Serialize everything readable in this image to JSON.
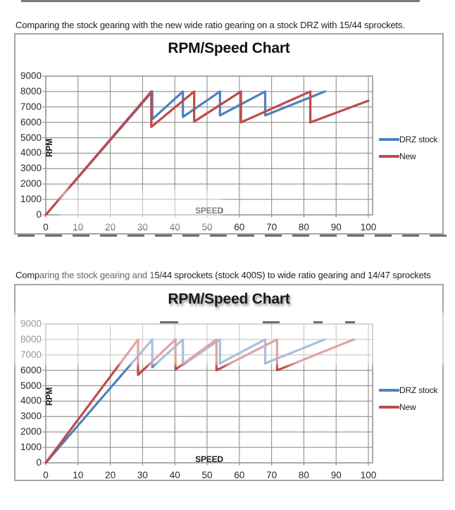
{
  "page": {
    "heading_top": "Comparing the stock gearing with the new wide ratio gearing on a stock DRZ with 15/44 sprockets.",
    "heading_bottom": "Comparing the stock gearing and 15/44 sprockets (stock 400S) to wide ratio gearing and 14/47 sprockets"
  },
  "colors": {
    "series_stock": "#4F81BD",
    "series_new": "#BE4B48",
    "grid": "#8F8F8F",
    "chart_border": "#A6A6A6",
    "tick_text": "#2A2A2A",
    "watermark": "#4A4A4A"
  },
  "chart_data": [
    {
      "type": "line",
      "title": "RPM/Speed Chart",
      "xlabel": "SPEED",
      "ylabel": "RPM",
      "xlim": [
        0,
        101.3
      ],
      "ylim": [
        0,
        9000
      ],
      "xticks": [
        0,
        10,
        20,
        30,
        40,
        50,
        60,
        70,
        80,
        90,
        100
      ],
      "yticks": [
        0,
        1000,
        2000,
        3000,
        4000,
        5000,
        6000,
        7000,
        8000,
        9000
      ],
      "grid": true,
      "legend_position": "right-outside",
      "series": [
        {
          "name": "DRZ stock",
          "color": "#4F81BD",
          "points": [
            [
              0,
              0
            ],
            [
              33,
              8000
            ],
            [
              33,
              6200
            ],
            [
              42.5,
              8000
            ],
            [
              42.5,
              6350
            ],
            [
              54,
              8000
            ],
            [
              54,
              6450
            ],
            [
              68,
              8000
            ],
            [
              68,
              6450
            ],
            [
              86.5,
              8000
            ]
          ]
        },
        {
          "name": "New",
          "color": "#BE4B48",
          "points": [
            [
              0,
              0
            ],
            [
              32.7,
              8000
            ],
            [
              32.7,
              5700
            ],
            [
              46,
              8000
            ],
            [
              46,
              6050
            ],
            [
              60.5,
              8000
            ],
            [
              60.5,
              6000
            ],
            [
              82,
              8000
            ],
            [
              82,
              6000
            ],
            [
              100,
              7400
            ]
          ]
        }
      ]
    },
    {
      "type": "line",
      "title": "RPM/Speed Chart",
      "xlabel": "SPEED",
      "ylabel": "RPM",
      "xlim": [
        0,
        101.3
      ],
      "ylim": [
        0,
        9000
      ],
      "xticks": [
        0,
        10,
        20,
        30,
        40,
        50,
        60,
        70,
        80,
        90,
        100
      ],
      "yticks": [
        0,
        1000,
        2000,
        3000,
        4000,
        5000,
        6000,
        7000,
        8000,
        9000
      ],
      "grid": true,
      "legend_position": "right-outside",
      "series": [
        {
          "name": "DRZ stock",
          "color": "#4F81BD",
          "points": [
            [
              0,
              0
            ],
            [
              33,
              8000
            ],
            [
              33,
              6200
            ],
            [
              42.5,
              8000
            ],
            [
              42.5,
              6350
            ],
            [
              54,
              8000
            ],
            [
              54,
              6450
            ],
            [
              68,
              8000
            ],
            [
              68,
              6450
            ],
            [
              86.5,
              8000
            ]
          ]
        },
        {
          "name": "New",
          "color": "#BE4B48",
          "points": [
            [
              0,
              0
            ],
            [
              28.6,
              8000
            ],
            [
              28.6,
              5700
            ],
            [
              40.2,
              8000
            ],
            [
              40.2,
              6050
            ],
            [
              52.9,
              8000
            ],
            [
              52.9,
              6000
            ],
            [
              71.7,
              8000
            ],
            [
              71.7,
              6000
            ],
            [
              95.5,
              8000
            ]
          ]
        }
      ]
    }
  ]
}
